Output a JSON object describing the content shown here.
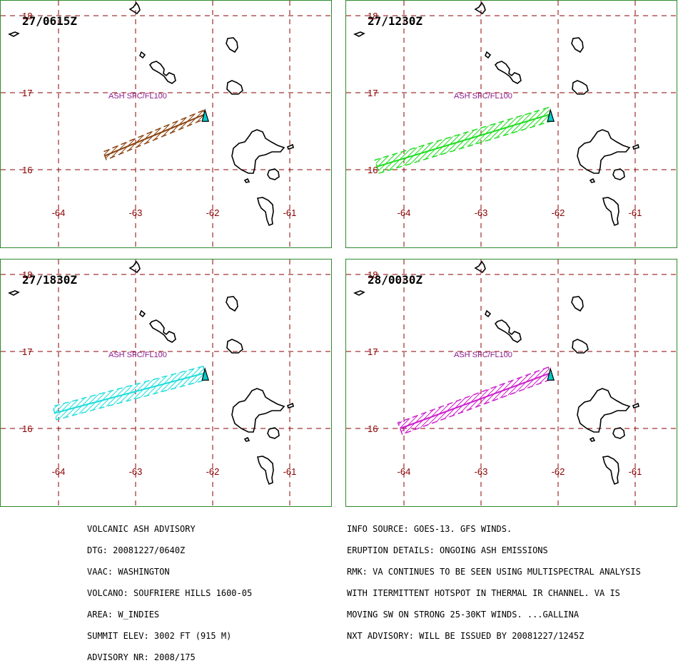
{
  "panels": [
    {
      "time": "27/0615Z",
      "color": "#8b4513",
      "label": "ASH SFC/FL100",
      "plume": [
        [
          -62.1,
          16.72
        ],
        [
          -63.4,
          16.18
        ]
      ],
      "halfwidth": 0.055
    },
    {
      "time": "27/1230Z",
      "color": "#22dd22",
      "label": "ASH SFC/FL100",
      "plume": [
        [
          -62.1,
          16.72
        ],
        [
          -64.35,
          16.04
        ]
      ],
      "halfwidth": 0.09
    },
    {
      "time": "27/1830Z",
      "color": "#22dddd",
      "label": "ASH SFC/FL100",
      "plume": [
        [
          -62.1,
          16.72
        ],
        [
          -64.05,
          16.2
        ]
      ],
      "halfwidth": 0.09
    },
    {
      "time": "28/0030Z",
      "color": "#cc22cc",
      "label": "ASH SFC/FL100",
      "plume": [
        [
          -62.1,
          16.72
        ],
        [
          -64.05,
          16.0
        ]
      ],
      "halfwidth": 0.08
    }
  ],
  "map": {
    "lon_ticks": [
      -64,
      -63,
      -62,
      -61
    ],
    "lat_ticks": [
      18,
      17,
      16
    ],
    "lon_labels": [
      "-64",
      "-63",
      "-62",
      "-61"
    ],
    "lat_labels": [
      "18",
      "17",
      "16"
    ],
    "grid_color": "#8b0000",
    "coast_color": "#000000",
    "volcano_color": "#00cccc"
  },
  "advisory_left": [
    "VOLCANIC ASH ADVISORY",
    "DTG: 20081227/0640Z",
    "VAAC: WASHINGTON",
    "VOLCANO: SOUFRIERE HILLS 1600-05",
    "AREA: W_INDIES",
    "SUMMIT ELEV: 3002 FT (915 M)",
    "ADVISORY NR: 2008/175"
  ],
  "advisory_right": [
    "INFO SOURCE: GOES-13. GFS WINDS.",
    "ERUPTION DETAILS: ONGOING ASH EMISSIONS",
    "RMK: VA CONTINUES TO BE SEEN USING MULTISPECTRAL ANALYSIS",
    "WITH ITERMITTENT HOTSPOT IN THERMAL IR CHANNEL. VA IS",
    "MOVING SW ON STRONG 25-30KT WINDS. ...GALLINA",
    "NXT ADVISORY: WILL BE ISSUED BY 20081227/1245Z"
  ]
}
